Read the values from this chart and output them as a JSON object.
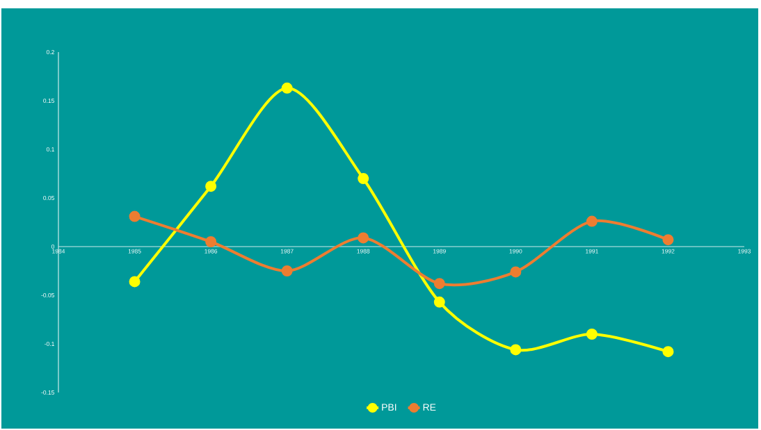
{
  "chart_data": {
    "type": "line",
    "x": [
      1985,
      1986,
      1987,
      1988,
      1989,
      1990,
      1991,
      1992
    ],
    "series": [
      {
        "name": "PBI",
        "color": "#ffff00",
        "values": [
          -0.036,
          0.062,
          0.163,
          0.07,
          -0.057,
          -0.106,
          -0.09,
          -0.108
        ]
      },
      {
        "name": "RE",
        "color": "#ed7d31",
        "values": [
          0.031,
          0.005,
          -0.025,
          0.009,
          -0.038,
          -0.026,
          0.026,
          0.007
        ]
      }
    ],
    "xlim": [
      1984,
      1993
    ],
    "xticks": [
      1984,
      1985,
      1986,
      1987,
      1988,
      1989,
      1990,
      1991,
      1992,
      1993
    ],
    "ylim": [
      -0.15,
      0.2
    ],
    "yticks": [
      -0.15,
      -0.1,
      -0.05,
      0,
      0.05,
      0.1,
      0.15,
      0.2
    ],
    "grid": false,
    "legend": "bottom",
    "marker": "circle",
    "line_style": "solid"
  }
}
